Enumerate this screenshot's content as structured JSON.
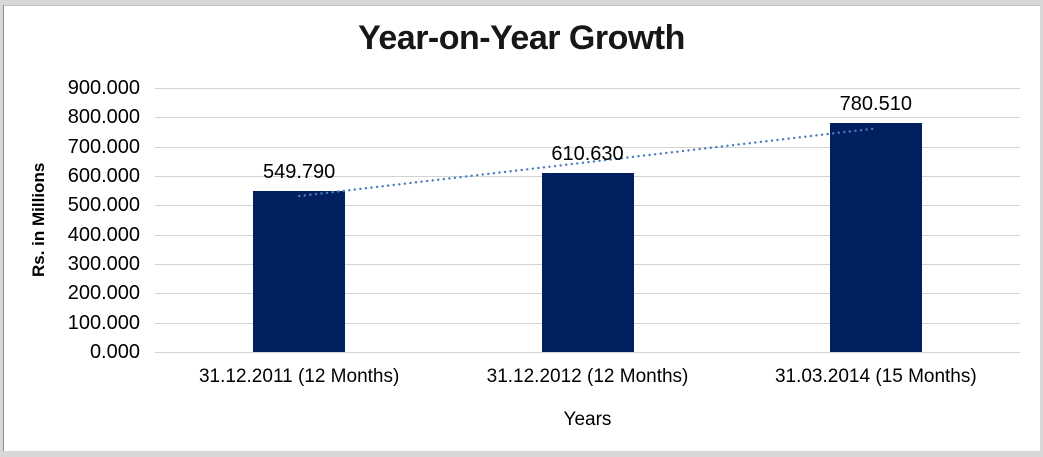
{
  "chart_data": {
    "type": "bar",
    "title": "Year-on-Year Growth",
    "categories": [
      "31.12.2011 (12 Months)",
      "31.12.2012 (12 Months)",
      "31.03.2014 (15 Months)"
    ],
    "values": [
      549.79,
      610.63,
      780.51
    ],
    "data_labels": [
      "549.790",
      "610.630",
      "780.510"
    ],
    "xlabel": "Years",
    "ylabel": "Rs. in Millions",
    "ylim": [
      0,
      900
    ],
    "yticks": [
      "900.000",
      "800.000",
      "700.000",
      "600.000",
      "500.000",
      "400.000",
      "300.000",
      "200.000",
      "100.000",
      "0.000"
    ],
    "grid": "horizontal",
    "legend_position": "none",
    "bar_color": "#002060",
    "trendline": {
      "type": "linear",
      "style": "dotted",
      "color": "#4A7EBB"
    }
  }
}
